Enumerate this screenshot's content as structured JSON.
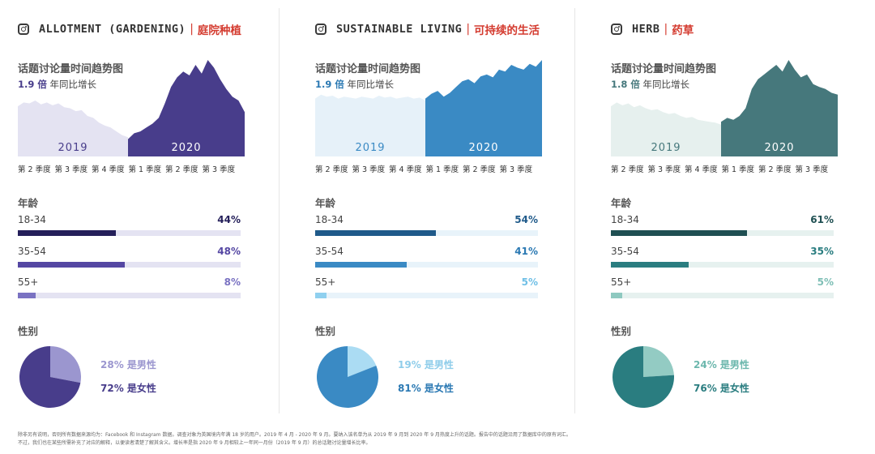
{
  "colors": {
    "title_accent": "#d43b2f"
  },
  "quarter_labels": [
    "第 2 季度",
    "第 3 季度",
    "第 4 季度",
    "第 1 季度",
    "第 2 季度",
    "第 3 季度"
  ],
  "chart_data": [
    {
      "type": "area",
      "title_en": "ALLOTMENT (GARDENING)",
      "separator": "|",
      "title_cn": "庭院种植",
      "subtitle": "话题讨论量时间趋势图",
      "growth_value": "1.9 倍",
      "growth_text": "年同比增长",
      "year_labels": [
        "2019",
        "2020"
      ],
      "accent": "#483d8b",
      "light": "#e4e3f2",
      "series": [
        {
          "values": [
            0.52,
            0.56,
            0.55,
            0.58,
            0.54,
            0.56,
            0.53,
            0.55,
            0.51,
            0.5,
            0.47,
            0.48,
            0.42,
            0.4,
            0.35,
            0.32,
            0.3,
            0.26,
            0.22,
            0.2
          ]
        },
        {
          "values": [
            0.18,
            0.24,
            0.26,
            0.3,
            0.34,
            0.4,
            0.55,
            0.72,
            0.82,
            0.88,
            0.84,
            0.95,
            0.86,
            1.0,
            0.92,
            0.8,
            0.7,
            0.62,
            0.58,
            0.46
          ]
        }
      ]
    },
    {
      "type": "area",
      "title_en": "SUSTAINABLE LIVING",
      "separator": "|",
      "title_cn": "可持续的生活",
      "subtitle": "话题讨论量时间趋势图",
      "growth_value": "1.9 倍",
      "growth_text": "年同比增长",
      "year_labels": [
        "2019",
        "2020"
      ],
      "accent": "#3a8ac4",
      "light": "#e6f1f9",
      "series": [
        {
          "values": [
            0.6,
            0.64,
            0.62,
            0.63,
            0.6,
            0.62,
            0.61,
            0.6,
            0.62,
            0.61,
            0.6,
            0.63,
            0.61,
            0.62,
            0.6,
            0.61,
            0.62,
            0.6,
            0.61,
            0.58
          ]
        },
        {
          "values": [
            0.6,
            0.65,
            0.68,
            0.62,
            0.66,
            0.72,
            0.78,
            0.8,
            0.76,
            0.83,
            0.85,
            0.82,
            0.9,
            0.88,
            0.95,
            0.92,
            0.9,
            0.96,
            0.93,
            1.0
          ]
        }
      ]
    },
    {
      "type": "area",
      "title_en": "HERB",
      "separator": "|",
      "title_cn": "药草",
      "subtitle": "话题讨论量时间趋势图",
      "growth_value": "1.8 倍",
      "growth_text": "年同比增长",
      "year_labels": [
        "2019",
        "2020"
      ],
      "accent": "#46787c",
      "light": "#e6f0ee",
      "series": [
        {
          "values": [
            0.52,
            0.56,
            0.53,
            0.55,
            0.51,
            0.53,
            0.5,
            0.48,
            0.49,
            0.46,
            0.44,
            0.45,
            0.42,
            0.4,
            0.41,
            0.38,
            0.37,
            0.36,
            0.35,
            0.33
          ]
        },
        {
          "values": [
            0.36,
            0.4,
            0.38,
            0.42,
            0.5,
            0.7,
            0.8,
            0.85,
            0.9,
            0.95,
            0.88,
            1.0,
            0.9,
            0.82,
            0.85,
            0.75,
            0.72,
            0.7,
            0.66,
            0.64
          ]
        }
      ]
    }
  ],
  "age": {
    "heading": "年龄",
    "groups": [
      [
        {
          "label": "18-34",
          "value": 44,
          "display": "44%",
          "bar": "#241f5a",
          "text": "#241f5a",
          "track": "#e4e3f2"
        },
        {
          "label": "35-54",
          "value": 48,
          "display": "48%",
          "bar": "#5547a3",
          "text": "#5547a3",
          "track": "#e4e3f2"
        },
        {
          "label": "55+",
          "value": 8,
          "display": "8%",
          "bar": "#7a72c2",
          "text": "#7a72c2",
          "track": "#e4e3f2"
        }
      ],
      [
        {
          "label": "18-34",
          "value": 54,
          "display": "54%",
          "bar": "#1f5a8a",
          "text": "#1f5a8a",
          "track": "#e8f3fa"
        },
        {
          "label": "35-54",
          "value": 41,
          "display": "41%",
          "bar": "#3a8ac4",
          "text": "#2b79b3",
          "track": "#e8f3fa"
        },
        {
          "label": "55+",
          "value": 5,
          "display": "5%",
          "bar": "#8fd0ef",
          "text": "#6fbfe6",
          "track": "#e8f3fa"
        }
      ],
      [
        {
          "label": "18-34",
          "value": 61,
          "display": "61%",
          "bar": "#1f4f52",
          "text": "#1f4f52",
          "track": "#e6f1ef"
        },
        {
          "label": "35-54",
          "value": 35,
          "display": "35%",
          "bar": "#2a7d80",
          "text": "#2a7d80",
          "track": "#e6f1ef"
        },
        {
          "label": "55+",
          "value": 5,
          "display": "5%",
          "bar": "#8ec9c0",
          "text": "#7fbfb6",
          "track": "#e6f1ef"
        }
      ]
    ]
  },
  "gender": {
    "heading": "性别",
    "groups": [
      {
        "male": 28,
        "female": 72,
        "male_label": "28% 是男性",
        "female_label": "72% 是女性",
        "male_color": "#9b96cf",
        "female_color": "#483d8b",
        "male_text": "#9b96cf",
        "female_text": "#483d8b"
      },
      {
        "male": 19,
        "female": 81,
        "male_label": "19% 是男性",
        "female_label": "81% 是女性",
        "male_color": "#abdcf3",
        "female_color": "#3a8ac4",
        "male_text": "#8fcdea",
        "female_text": "#2b79b3"
      },
      {
        "male": 24,
        "female": 76,
        "male_label": "24% 是男性",
        "female_label": "76% 是女性",
        "male_color": "#93cbc3",
        "female_color": "#2a7d80",
        "male_text": "#6cb7ad",
        "female_text": "#2a7d80"
      }
    ]
  },
  "footer": {
    "line1": "除非另有说明，否则所有数据来源均为：Facebook 和 Instagram 数据。调查对象为英国境内年满 18 岁的用户。2019 年 4 月 - 2020 年 9 月。要纳入该名单为从 2019 年 9 月到 2020 年 9 月热度上升的话题。报告中的话题沿用了数据库中的原有词汇。",
    "line2": "不过，我们也在某些所需补充了对应的解释，以便读者清楚了解其含义。增长率是指 2020 年 9 月相较上一年同一月份（2019 年 9 月）的总话题讨论量增长比率。"
  }
}
